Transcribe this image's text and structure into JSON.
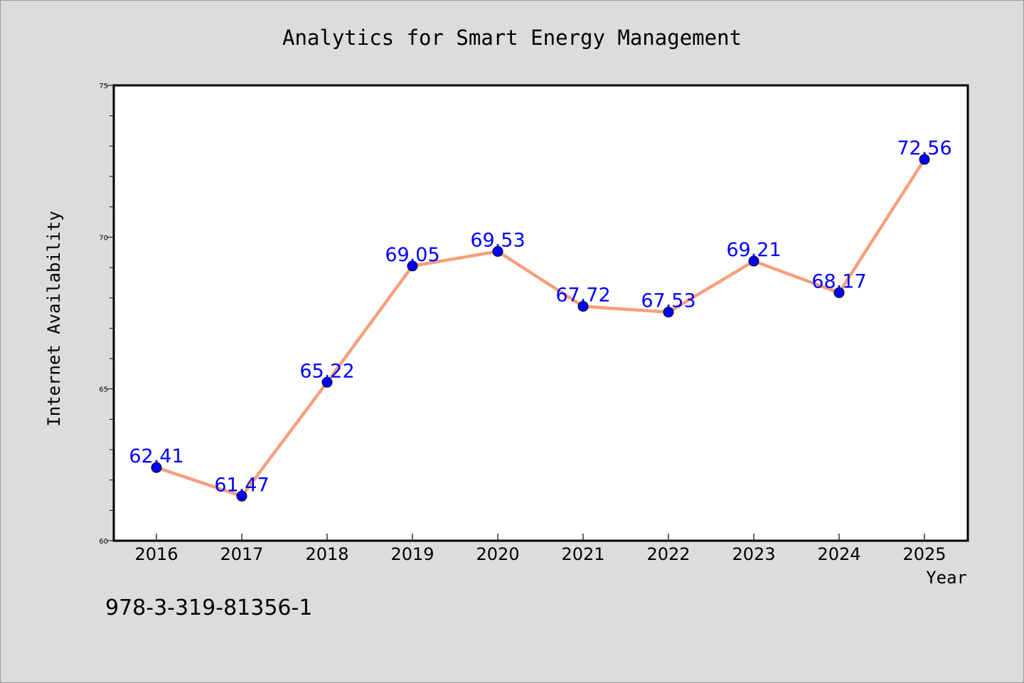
{
  "chart_data": {
    "type": "line",
    "title": "Analytics for Smart Energy Management",
    "xlabel": "Year",
    "ylabel": "Internet Availability",
    "categories": [
      "2016",
      "2017",
      "2018",
      "2019",
      "2020",
      "2021",
      "2022",
      "2023",
      "2024",
      "2025"
    ],
    "series": [
      {
        "values": [
          62.41,
          61.47,
          65.22,
          69.05,
          69.53,
          67.72,
          67.53,
          69.21,
          68.17,
          72.56
        ]
      }
    ],
    "data_labels": [
      "62.41",
      "61.47",
      "65.22",
      "69.05",
      "69.53",
      "67.72",
      "67.53",
      "69.21",
      "68.17",
      "72.56"
    ],
    "ylim": [
      60,
      75
    ],
    "yticks": [
      "60",
      "65",
      "70",
      "75"
    ],
    "line_color": "#f4a07c",
    "marker_color": "#0000ff",
    "label_color": "#0000ff",
    "grid": false
  },
  "footer": {
    "identifier": "978-3-319-81356-1"
  }
}
